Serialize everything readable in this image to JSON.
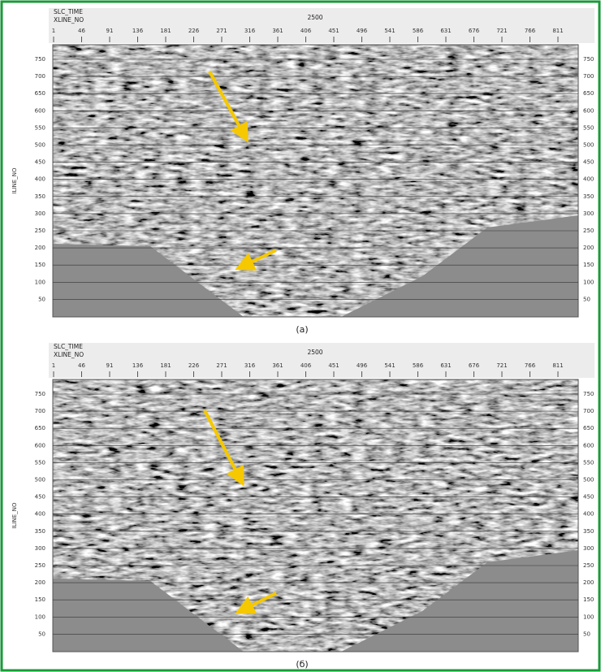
{
  "figure": {
    "panels": [
      {
        "slice_label": "SLC_TIME",
        "axis_x_label": "XLINE_NO",
        "slice_value": "2500",
        "axis_y_label": "ILINE_NO",
        "xticks": [
          1,
          46,
          91,
          136,
          181,
          226,
          271,
          316,
          361,
          406,
          451,
          496,
          541,
          586,
          631,
          676,
          721,
          766,
          811
        ],
        "yticks": [
          750,
          700,
          650,
          600,
          550,
          500,
          450,
          400,
          350,
          300,
          250,
          200,
          150,
          100,
          50
        ],
        "caption": "(a)"
      },
      {
        "slice_label": "SLC_TIME",
        "axis_x_label": "XLINE_NO",
        "slice_value": "2500",
        "axis_y_label": "ILINE_NO",
        "xticks": [
          1,
          46,
          91,
          136,
          181,
          226,
          271,
          316,
          361,
          406,
          451,
          496,
          541,
          586,
          631,
          676,
          721,
          766,
          811
        ],
        "yticks": [
          750,
          700,
          650,
          600,
          550,
          500,
          450,
          400,
          350,
          300,
          250,
          200,
          150,
          100,
          50
        ],
        "caption": "(б)"
      }
    ]
  }
}
